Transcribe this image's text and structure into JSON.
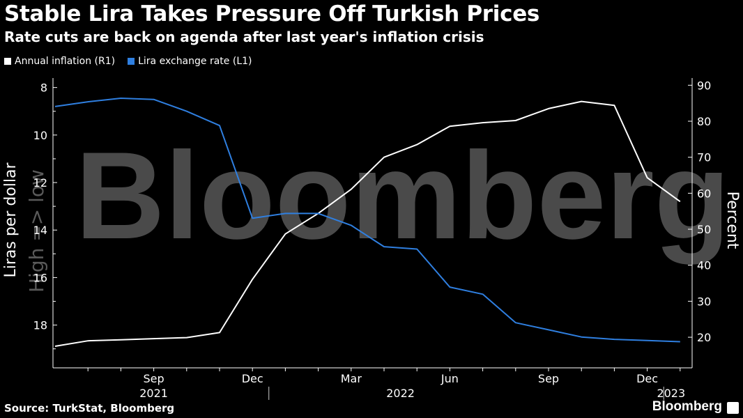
{
  "header": {
    "title": "Stable Lira Takes Pressure Off Turkish Prices",
    "subtitle": "Rate cuts are back on agenda after last year's inflation crisis"
  },
  "legend": [
    {
      "label": "Annual inflation (R1)",
      "color": "#ffffff"
    },
    {
      "label": "Lira exchange rate (L1)",
      "color": "#2f7fe0"
    }
  ],
  "footer": {
    "source": "Source: TurkStat, Bloomberg",
    "brand": "Bloomberg"
  },
  "watermark": {
    "brand": "Bloomberg",
    "note": "High => low"
  },
  "chart_data": {
    "type": "line",
    "x_months": [
      "2021-07",
      "2021-08",
      "2021-09",
      "2021-10",
      "2021-11",
      "2021-12",
      "2022-01",
      "2022-02",
      "2022-03",
      "2022-04",
      "2022-05",
      "2022-06",
      "2022-07",
      "2022-08",
      "2022-09",
      "2022-10",
      "2022-11",
      "2022-12",
      "2023-01"
    ],
    "x_tick_labels": [
      "Sep",
      "Dec",
      "Mar",
      "Jun",
      "Sep",
      "Dec"
    ],
    "x_year_labels": [
      "2021",
      "2022",
      "2023"
    ],
    "series": [
      {
        "name": "Annual inflation (R1)",
        "axis": "right",
        "color": "#ffffff",
        "points": [
          [
            "2021-06",
            17.5
          ],
          [
            "2021-07",
            19.0
          ],
          [
            "2021-08",
            19.3
          ],
          [
            "2021-09",
            19.6
          ],
          [
            "2021-10",
            19.9
          ],
          [
            "2021-11",
            21.3
          ],
          [
            "2021-12",
            36.1
          ],
          [
            "2022-01",
            48.7
          ],
          [
            "2022-02",
            54.4
          ],
          [
            "2022-03",
            61.1
          ],
          [
            "2022-04",
            70.0
          ],
          [
            "2022-05",
            73.5
          ],
          [
            "2022-06",
            78.6
          ],
          [
            "2022-07",
            79.6
          ],
          [
            "2022-08",
            80.2
          ],
          [
            "2022-09",
            83.5
          ],
          [
            "2022-10",
            85.5
          ],
          [
            "2022-11",
            84.4
          ],
          [
            "2022-12",
            64.3
          ],
          [
            "2023-01",
            57.7
          ]
        ]
      },
      {
        "name": "Lira exchange rate (L1)",
        "axis": "left",
        "color": "#2f7fe0",
        "points": [
          [
            "2021-06",
            8.8
          ],
          [
            "2021-07",
            8.6
          ],
          [
            "2021-08",
            8.45
          ],
          [
            "2021-09",
            8.5
          ],
          [
            "2021-10",
            9.0
          ],
          [
            "2021-11",
            9.6
          ],
          [
            "2021-12",
            13.5
          ],
          [
            "2022-01",
            13.3
          ],
          [
            "2022-02",
            13.3
          ],
          [
            "2022-03",
            13.8
          ],
          [
            "2022-04",
            14.7
          ],
          [
            "2022-05",
            14.8
          ],
          [
            "2022-06",
            16.4
          ],
          [
            "2022-07",
            16.7
          ],
          [
            "2022-08",
            17.9
          ],
          [
            "2022-09",
            18.2
          ],
          [
            "2022-10",
            18.5
          ],
          [
            "2022-11",
            18.6
          ],
          [
            "2022-12",
            18.65
          ],
          [
            "2023-01",
            18.7
          ]
        ]
      }
    ],
    "y_left": {
      "label": "Liras per dollar",
      "inverted": true,
      "range": [
        7.6,
        19.8
      ],
      "ticks": [
        8,
        10,
        12,
        14,
        16,
        18
      ]
    },
    "y_right": {
      "label": "Percent",
      "range": [
        11.5,
        92
      ],
      "ticks": [
        20,
        30,
        40,
        50,
        60,
        70,
        80,
        90
      ]
    },
    "grid": false,
    "legend_position": "top-left"
  }
}
